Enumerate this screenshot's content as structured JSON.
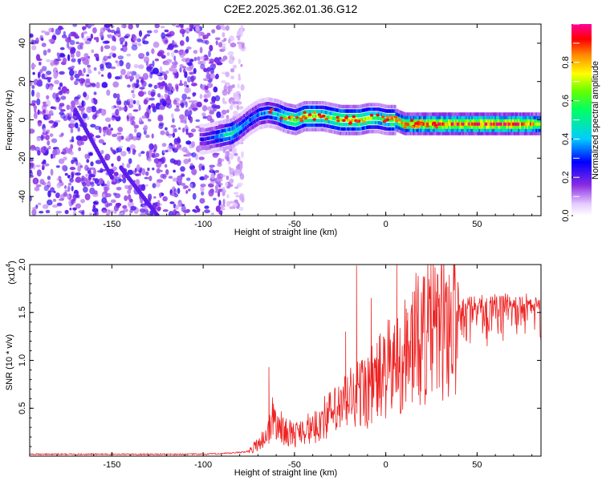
{
  "title": "C2E2.2025.362.01.36.G12",
  "chart_data": [
    {
      "type": "heatmap",
      "xlabel": "Height of straight line (km)",
      "ylabel": "Frequency (Hz)",
      "xlim": [
        -195,
        85
      ],
      "ylim": [
        -50,
        50
      ],
      "xticks": [
        -150,
        -100,
        -50,
        0,
        50
      ],
      "yticks": [
        -40,
        -20,
        0,
        20,
        40
      ],
      "colorbar": {
        "label": "Normalized spectral amplitude",
        "range": [
          0.0,
          1.0
        ],
        "ticks": [
          0.0,
          0.2,
          0.4,
          0.6,
          0.8
        ],
        "colormap": "rainbow (violet-blue-cyan-green-yellow-red-magenta)"
      },
      "ridge": {
        "description": "signal ridge: frequency vs height",
        "x": [
          -100,
          -95,
          -90,
          -85,
          -80,
          -75,
          -70,
          -65,
          -60,
          -55,
          -50,
          -45,
          -40,
          -35,
          -30,
          -25,
          -20,
          -15,
          -10,
          -5,
          0,
          5,
          10,
          20,
          30,
          40,
          50,
          60,
          70,
          80,
          85
        ],
        "y": [
          -10,
          -9,
          -8,
          -7,
          -4,
          0,
          3,
          4,
          3,
          1,
          0,
          2,
          2,
          2,
          1,
          0,
          0,
          0,
          1,
          1,
          0,
          0,
          -2,
          -2,
          -2,
          -2,
          -2,
          -2,
          -2,
          -2,
          -2
        ],
        "amplitude": [
          0.25,
          0.3,
          0.45,
          0.55,
          0.4,
          0.35,
          0.35,
          0.4,
          0.45,
          0.6,
          0.65,
          0.65,
          0.7,
          0.6,
          0.6,
          0.75,
          0.7,
          0.75,
          0.7,
          0.6,
          0.55,
          0.75,
          0.8,
          0.85,
          0.9,
          0.9,
          0.95,
          0.95,
          0.95,
          0.85,
          0.7
        ]
      },
      "noise_region_x": [
        -195,
        -78
      ],
      "diagonal_streaks": [
        {
          "x": [
            -170,
            -150
          ],
          "y": [
            5,
            -30
          ]
        },
        {
          "x": [
            -145,
            -125
          ],
          "y": [
            -25,
            -50
          ]
        }
      ]
    },
    {
      "type": "line",
      "xlabel": "Height of straight line (km)",
      "ylabel": "SNR (10 * v/v)",
      "scale_label": "(x10",
      "scale_exponent": "4",
      "xlim": [
        -195,
        85
      ],
      "ylim": [
        0,
        2.0
      ],
      "xticks": [
        -150,
        -100,
        -50,
        0,
        50
      ],
      "yticks": [
        0.5,
        1.0,
        1.5,
        2.0
      ],
      "series": [
        {
          "name": "SNR",
          "color": "#ee2222",
          "x": [
            -195,
            -150,
            -100,
            -85,
            -75,
            -70,
            -65,
            -62,
            -58,
            -55,
            -50,
            -45,
            -40,
            -35,
            -30,
            -25,
            -20,
            -15,
            -10,
            -5,
            0,
            5,
            10,
            15,
            20,
            25,
            30,
            35,
            40,
            45,
            50,
            55,
            60,
            65,
            70,
            75,
            80,
            85
          ],
          "y": [
            0.02,
            0.02,
            0.02,
            0.03,
            0.05,
            0.15,
            0.25,
            0.45,
            0.35,
            0.3,
            0.25,
            0.35,
            0.3,
            0.45,
            0.5,
            0.55,
            0.7,
            0.75,
            0.8,
            0.9,
            1.0,
            1.1,
            1.2,
            1.35,
            1.45,
            1.5,
            1.55,
            1.6,
            1.62,
            1.64,
            1.65,
            1.66,
            1.67,
            1.68,
            1.66,
            1.67,
            1.65,
            1.6
          ],
          "spikes": [
            {
              "x": -64,
              "y": 0.93
            },
            {
              "x": -22,
              "y": 1.3
            },
            {
              "x": -16,
              "y": 1.99
            },
            {
              "x": -8,
              "y": 1.65
            },
            {
              "x": 6,
              "y": 2.0
            },
            {
              "x": 12,
              "y": 1.5
            }
          ]
        }
      ]
    }
  ]
}
